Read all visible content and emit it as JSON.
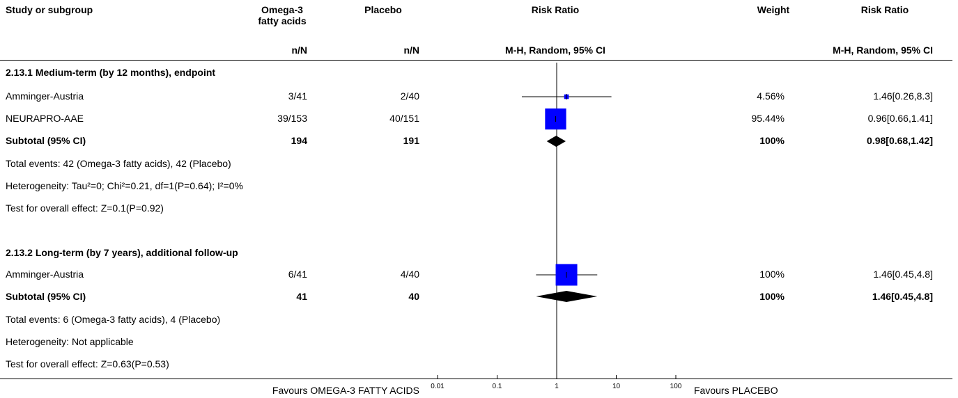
{
  "header": {
    "study_label": "Study or subgroup",
    "exp_label_line1": "Omega-3",
    "exp_label_line2": "fatty acids",
    "ctl_label": "Placebo",
    "plot_label": "Risk Ratio",
    "weight_label": "Weight",
    "rr_label": "Risk Ratio",
    "exp_sub": "n/N",
    "ctl_sub": "n/N",
    "plot_sub": "M-H, Random, 95% CI",
    "rr_sub": "M-H, Random, 95% CI"
  },
  "subgroups": [
    {
      "title": "2.13.1 Medium-term (by 12 months), endpoint",
      "studies": [
        {
          "name": "Amminger-Austria",
          "exp": "3/41",
          "ctl": "2/40",
          "weight": "4.56%",
          "rr_text": "1.46[0.26,8.3]"
        },
        {
          "name": "NEURAPRO-AAE",
          "exp": "39/153",
          "ctl": "40/151",
          "weight": "95.44%",
          "rr_text": "0.96[0.66,1.41]"
        }
      ],
      "subtotal": {
        "label": "Subtotal (95% CI)",
        "exp": "194",
        "ctl": "191",
        "weight": "100%",
        "rr_text": "0.98[0.68,1.42]"
      },
      "notes": [
        "Total events: 42 (Omega-3 fatty acids), 42 (Placebo)",
        "Heterogeneity: Tau²=0; Chi²=0.21, df=1(P=0.64); I²=0%",
        "Test for overall effect: Z=0.1(P=0.92)"
      ]
    },
    {
      "title": "2.13.2 Long-term (by 7 years), additional follow-up",
      "studies": [
        {
          "name": "Amminger-Austria",
          "exp": "6/41",
          "ctl": "4/40",
          "weight": "100%",
          "rr_text": "1.46[0.45,4.8]"
        }
      ],
      "subtotal": {
        "label": "Subtotal (95% CI)",
        "exp": "41",
        "ctl": "40",
        "weight": "100%",
        "rr_text": "1.46[0.45,4.8]"
      },
      "notes": [
        "Total events: 6 (Omega-3 fatty acids), 4 (Placebo)",
        "Heterogeneity: Not applicable",
        "Test for overall effect: Z=0.63(P=0.53)"
      ]
    }
  ],
  "footer": {
    "favours_left": "Favours OMEGA-3 FATTY ACIDS",
    "favours_right": "Favours PLACEBO"
  },
  "colors": {
    "marker": "#0000ff",
    "diamond": "#000000",
    "line": "#000000"
  },
  "chart_data": {
    "type": "forest",
    "scale": "log",
    "xlim": [
      0.01,
      100
    ],
    "ticks": [
      0.01,
      0.1,
      1,
      10,
      100
    ],
    "tick_labels": [
      "0.01",
      "0.1",
      "1",
      "10",
      "100"
    ],
    "null_value": 1,
    "studies": [
      {
        "subgroup": 0,
        "name": "Amminger-Austria",
        "rr": 1.46,
        "lo": 0.26,
        "hi": 8.3,
        "weight": 4.56
      },
      {
        "subgroup": 0,
        "name": "NEURAPRO-AAE",
        "rr": 0.96,
        "lo": 0.66,
        "hi": 1.41,
        "weight": 95.44
      },
      {
        "subgroup": 1,
        "name": "Amminger-Austria",
        "rr": 1.46,
        "lo": 0.45,
        "hi": 4.8,
        "weight": 100
      }
    ],
    "subtotals": [
      {
        "subgroup": 0,
        "rr": 0.98,
        "lo": 0.68,
        "hi": 1.42
      },
      {
        "subgroup": 1,
        "rr": 1.46,
        "lo": 0.45,
        "hi": 4.8
      }
    ]
  }
}
